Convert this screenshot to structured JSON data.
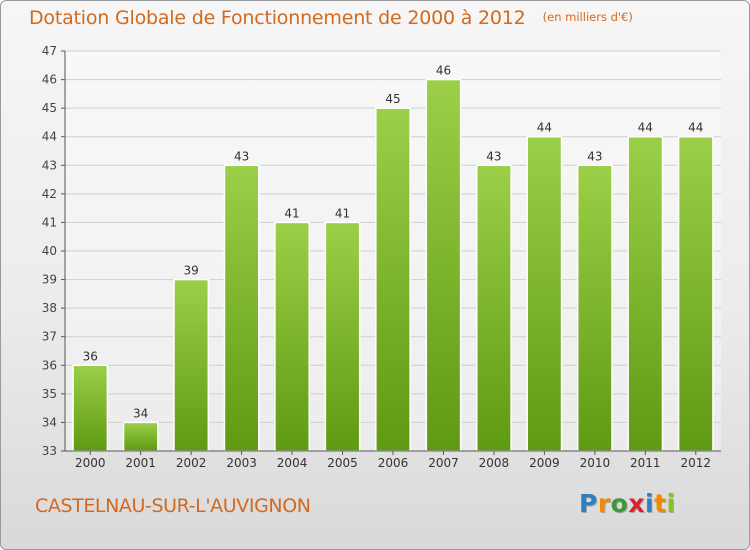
{
  "header": {
    "title": "Dotation Globale de Fonctionnement de 2000 à 2012",
    "unit": "(en milliers d'€)"
  },
  "footer": {
    "commune": "CASTELNAU-SUR-L'AUVIGNON",
    "brand": "Proxiti",
    "brand_letters": [
      {
        "char": "P",
        "color": "#2e7fc0"
      },
      {
        "char": "r",
        "color": "#f08a00"
      },
      {
        "char": "o",
        "color": "#3a9a3a"
      },
      {
        "char": "x",
        "color": "#d8232a"
      },
      {
        "char": "i",
        "color": "#2e7fc0"
      },
      {
        "char": "t",
        "color": "#f08a00"
      },
      {
        "char": "i",
        "color": "#8cbf26"
      }
    ]
  },
  "colors": {
    "title": "#d2691e",
    "bar_top": "#9ccf48",
    "bar_bottom": "#5e9a12",
    "axis": "#555555",
    "grid": "#cfcfcf"
  },
  "chart_data": {
    "type": "bar",
    "title": "Dotation Globale de Fonctionnement de 2000 à 2012",
    "subtitle": "(en milliers d'€)",
    "xlabel": "",
    "ylabel": "",
    "categories": [
      "2000",
      "2001",
      "2002",
      "2003",
      "2004",
      "2005",
      "2006",
      "2007",
      "2008",
      "2009",
      "2010",
      "2011",
      "2012"
    ],
    "values": [
      36,
      34,
      39,
      43,
      41,
      41,
      45,
      46,
      43,
      44,
      43,
      44,
      44
    ],
    "ylim": [
      33,
      47
    ],
    "yticks": [
      33,
      34,
      35,
      36,
      37,
      38,
      39,
      40,
      41,
      42,
      43,
      44,
      45,
      46,
      47
    ],
    "grid": true,
    "data_labels": true,
    "legend": "none"
  }
}
